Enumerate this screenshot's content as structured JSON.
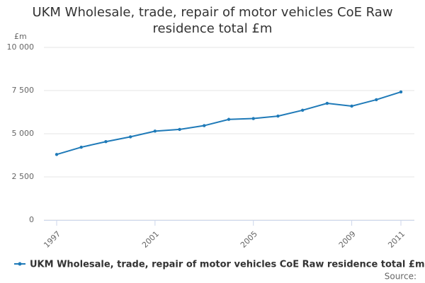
{
  "chart_data": {
    "type": "line",
    "title": "UKM Wholesale, trade, repair of motor vehicles CoE Raw residence total £m",
    "y_label": "£m",
    "source": "Source:",
    "x": [
      1997,
      1998,
      1999,
      2000,
      2001,
      2002,
      2003,
      2004,
      2005,
      2006,
      2007,
      2008,
      2009,
      2010,
      2011
    ],
    "series": [
      {
        "name": "UKM Wholesale, trade, repair of motor vehicles CoE Raw residence total £m",
        "color": "#1f7ab8",
        "values": [
          3800,
          4220,
          4540,
          4820,
          5150,
          5250,
          5470,
          5830,
          5880,
          6020,
          6360,
          6760,
          6600,
          6970,
          7420
        ]
      }
    ],
    "xlim": [
      1997,
      2011
    ],
    "xticks": [
      1997,
      2001,
      2005,
      2009,
      2011
    ],
    "ylim": [
      0,
      10000
    ],
    "yticks": [
      0,
      {
        "value": 2500,
        "label": "2 500"
      },
      {
        "value": 5000,
        "label": "5 000"
      },
      {
        "value": 7500,
        "label": "7 500"
      },
      {
        "value": 10000,
        "label": "10 000"
      }
    ],
    "grid": true
  }
}
